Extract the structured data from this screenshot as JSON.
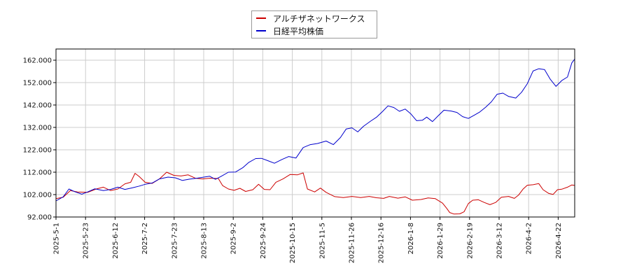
{
  "chart_data": {
    "type": "line",
    "ylim": [
      92000,
      167000
    ],
    "yticks": [
      "92.000",
      "102.000",
      "112.000",
      "122.000",
      "132.000",
      "142.000",
      "152.000",
      "162.000"
    ],
    "ytick_values": [
      92000,
      102000,
      112000,
      122000,
      132000,
      142000,
      152000,
      162000
    ],
    "xticks": [
      "2025-5-1",
      "2025-5-23",
      "2025-6-12",
      "2025-7-2",
      "2025-7-23",
      "2025-8-13",
      "2025-9-2",
      "2025-9-24",
      "2025-10-15",
      "2025-11-5",
      "2025-11-26",
      "2025-12-16",
      "2026-1-8",
      "2026-1-29",
      "2026-2-19",
      "2026-3-12",
      "2026-4-2",
      "2026-4-22"
    ],
    "x_range": [
      0,
      361
    ],
    "grid": true,
    "legend_position": "top-center",
    "series": [
      {
        "name": "アルチザネットワークス",
        "color": "#cc0000",
        "points": [
          [
            0,
            100200
          ],
          [
            5,
            100800
          ],
          [
            10,
            103800
          ],
          [
            15,
            103200
          ],
          [
            22,
            103000
          ],
          [
            28,
            104500
          ],
          [
            33,
            105300
          ],
          [
            38,
            103800
          ],
          [
            43,
            104500
          ],
          [
            48,
            106800
          ],
          [
            52,
            107500
          ],
          [
            55,
            111500
          ],
          [
            58,
            110000
          ],
          [
            62,
            107500
          ],
          [
            67,
            107000
          ],
          [
            72,
            109000
          ],
          [
            77,
            112000
          ],
          [
            82,
            110600
          ],
          [
            87,
            110300
          ],
          [
            92,
            110800
          ],
          [
            97,
            109300
          ],
          [
            102,
            109000
          ],
          [
            107,
            109300
          ],
          [
            113,
            109200
          ],
          [
            116,
            106000
          ],
          [
            120,
            104500
          ],
          [
            124,
            103900
          ],
          [
            128,
            104800
          ],
          [
            132,
            103400
          ],
          [
            137,
            104200
          ],
          [
            141,
            106600
          ],
          [
            145,
            104300
          ],
          [
            149,
            104200
          ],
          [
            153,
            107500
          ],
          [
            158,
            109000
          ],
          [
            163,
            111000
          ],
          [
            168,
            110800
          ],
          [
            172,
            111700
          ],
          [
            175,
            104500
          ],
          [
            180,
            103200
          ],
          [
            184,
            104900
          ],
          [
            188,
            103000
          ],
          [
            194,
            101100
          ],
          [
            200,
            100700
          ],
          [
            206,
            101200
          ],
          [
            212,
            100700
          ],
          [
            218,
            101200
          ],
          [
            223,
            100600
          ],
          [
            228,
            100300
          ],
          [
            232,
            101200
          ],
          [
            238,
            100400
          ],
          [
            243,
            101000
          ],
          [
            248,
            99500
          ],
          [
            254,
            99800
          ],
          [
            259,
            100500
          ],
          [
            264,
            100200
          ],
          [
            269,
            98200
          ],
          [
            272,
            95800
          ],
          [
            274,
            94000
          ],
          [
            277,
            93300
          ],
          [
            281,
            93400
          ],
          [
            284,
            94300
          ],
          [
            287,
            98000
          ],
          [
            290,
            99500
          ],
          [
            294,
            99700
          ],
          [
            298,
            98500
          ],
          [
            302,
            97500
          ],
          [
            306,
            98500
          ],
          [
            310,
            100800
          ],
          [
            315,
            101200
          ],
          [
            319,
            100300
          ],
          [
            322,
            101800
          ],
          [
            325,
            104400
          ],
          [
            328,
            106200
          ],
          [
            332,
            106400
          ],
          [
            336,
            106900
          ],
          [
            339,
            104200
          ],
          [
            343,
            102500
          ],
          [
            346,
            102100
          ],
          [
            349,
            104200
          ],
          [
            352,
            104400
          ],
          [
            356,
            105300
          ],
          [
            359,
            106300
          ],
          [
            361,
            106100
          ]
        ]
      },
      {
        "name": "日経平均株価",
        "color": "#0000cc",
        "points": [
          [
            0,
            99200
          ],
          [
            5,
            101000
          ],
          [
            9,
            104500
          ],
          [
            13,
            103300
          ],
          [
            18,
            102200
          ],
          [
            22,
            103200
          ],
          [
            27,
            104600
          ],
          [
            33,
            103800
          ],
          [
            38,
            104300
          ],
          [
            43,
            105300
          ],
          [
            48,
            104300
          ],
          [
            53,
            105000
          ],
          [
            58,
            105800
          ],
          [
            62,
            106600
          ],
          [
            67,
            107200
          ],
          [
            72,
            109000
          ],
          [
            78,
            109800
          ],
          [
            83,
            109500
          ],
          [
            88,
            108300
          ],
          [
            93,
            108900
          ],
          [
            98,
            109300
          ],
          [
            103,
            109800
          ],
          [
            107,
            110200
          ],
          [
            111,
            108800
          ],
          [
            115,
            110200
          ],
          [
            120,
            112000
          ],
          [
            125,
            112100
          ],
          [
            130,
            114000
          ],
          [
            134,
            116300
          ],
          [
            139,
            118100
          ],
          [
            143,
            118200
          ],
          [
            148,
            117000
          ],
          [
            152,
            116000
          ],
          [
            157,
            117600
          ],
          [
            162,
            119000
          ],
          [
            167,
            118300
          ],
          [
            172,
            123000
          ],
          [
            177,
            124300
          ],
          [
            182,
            124800
          ],
          [
            188,
            125900
          ],
          [
            193,
            124300
          ],
          [
            198,
            127500
          ],
          [
            202,
            131300
          ],
          [
            206,
            131800
          ],
          [
            210,
            130000
          ],
          [
            214,
            132500
          ],
          [
            219,
            134800
          ],
          [
            223,
            136500
          ],
          [
            227,
            138900
          ],
          [
            231,
            141600
          ],
          [
            235,
            140900
          ],
          [
            239,
            139200
          ],
          [
            243,
            140200
          ],
          [
            247,
            138000
          ],
          [
            251,
            135000
          ],
          [
            255,
            135200
          ],
          [
            258,
            136600
          ],
          [
            262,
            134600
          ],
          [
            266,
            137200
          ],
          [
            270,
            139700
          ],
          [
            275,
            139300
          ],
          [
            279,
            138700
          ],
          [
            283,
            136800
          ],
          [
            287,
            136000
          ],
          [
            291,
            137400
          ],
          [
            295,
            138900
          ],
          [
            299,
            141000
          ],
          [
            303,
            143400
          ],
          [
            307,
            146800
          ],
          [
            311,
            147300
          ],
          [
            315,
            145800
          ],
          [
            320,
            145100
          ],
          [
            324,
            147700
          ],
          [
            328,
            151500
          ],
          [
            332,
            157200
          ],
          [
            336,
            158200
          ],
          [
            340,
            157800
          ],
          [
            344,
            153500
          ],
          [
            348,
            150300
          ],
          [
            352,
            152900
          ],
          [
            356,
            154500
          ],
          [
            359,
            160800
          ],
          [
            361,
            162500
          ]
        ]
      }
    ]
  }
}
